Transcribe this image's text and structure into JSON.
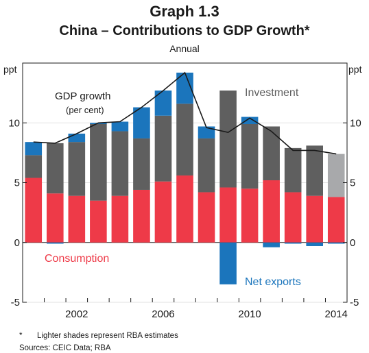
{
  "header": {
    "graph_number": "Graph 1.3",
    "title": "China – Contributions to GDP Growth*",
    "subtitle": "Annual"
  },
  "footnotes": {
    "note_marker": "*",
    "note": "Lighter shades represent RBA estimates",
    "sources": "Sources:  CEIC Data; RBA"
  },
  "colors": {
    "consumption": "#ee3a48",
    "investment": "#5f5f5f",
    "investment_estimate": "#a8a9ab",
    "net_exports": "#1b75bc",
    "gdp_line": "#1a1a1a"
  },
  "chart_data": {
    "type": "bar",
    "stacked": true,
    "x": [
      2000,
      2001,
      2002,
      2003,
      2004,
      2005,
      2006,
      2007,
      2008,
      2009,
      2010,
      2011,
      2012,
      2013,
      2014
    ],
    "series": [
      {
        "name": "Consumption",
        "values": [
          5.4,
          4.1,
          3.9,
          3.5,
          3.9,
          4.4,
          5.1,
          5.6,
          4.2,
          4.6,
          4.5,
          5.2,
          4.2,
          3.9,
          3.8
        ]
      },
      {
        "name": "Investment",
        "values": [
          1.9,
          4.2,
          4.5,
          6.4,
          5.4,
          4.3,
          5.5,
          6.0,
          4.5,
          8.1,
          5.4,
          4.5,
          3.7,
          4.2,
          3.6
        ],
        "estimate_index": 14
      },
      {
        "name": "Net exports",
        "values": [
          1.1,
          -0.1,
          0.7,
          0.1,
          0.8,
          2.6,
          2.1,
          2.6,
          1.0,
          -3.5,
          0.6,
          -0.4,
          -0.1,
          -0.3,
          -0.1
        ]
      }
    ],
    "gdp_growth": {
      "name": "GDP growth",
      "unit": "(per cent)",
      "values": [
        8.4,
        8.3,
        9.1,
        10.0,
        10.1,
        11.3,
        12.7,
        14.2,
        9.6,
        9.2,
        10.4,
        9.3,
        7.7,
        7.7,
        7.4
      ]
    },
    "xticks": [
      "2002",
      "2006",
      "2010",
      "2014"
    ],
    "yticks": [
      "-5",
      "0",
      "5",
      "10"
    ],
    "ylabel_left": "ppt",
    "ylabel_right": "ppt",
    "ylim": [
      -5,
      15
    ],
    "annotations": {
      "gdp_growth_label": "GDP growth",
      "gdp_growth_unit": "(per cent)",
      "investment_label": "Investment",
      "consumption_label": "Consumption",
      "net_exports_label": "Net exports"
    }
  }
}
